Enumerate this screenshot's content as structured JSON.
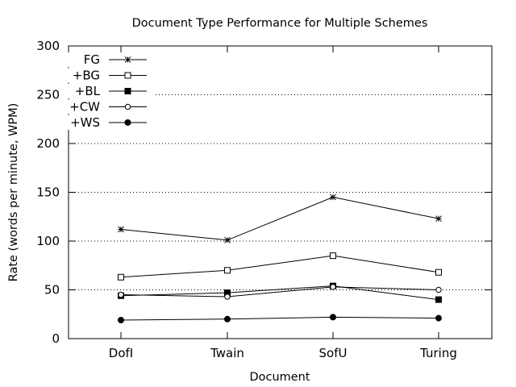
{
  "chart_data": {
    "type": "line",
    "title": "Document Type Performance for Multiple Schemes",
    "xlabel": "Document",
    "ylabel": "Rate (words per minute, WPM)",
    "categories": [
      "DofI",
      "Twain",
      "SofU",
      "Turing"
    ],
    "ylim": [
      0,
      300
    ],
    "yticks": [
      0,
      50,
      100,
      150,
      200,
      250,
      300
    ],
    "grid": "horizontal-dotted",
    "legend_position": "top-left",
    "series": [
      {
        "name": "FG",
        "marker": "asterisk",
        "values": [
          112,
          101,
          145,
          123
        ]
      },
      {
        "name": "+BG",
        "marker": "open-square",
        "values": [
          63,
          70,
          85,
          68
        ]
      },
      {
        "name": "+BL",
        "marker": "filled-square",
        "values": [
          44,
          47,
          54,
          40
        ]
      },
      {
        "name": "+CW",
        "marker": "open-circle",
        "values": [
          45,
          43,
          53,
          50
        ]
      },
      {
        "name": "+WS",
        "marker": "filled-circle",
        "values": [
          19,
          20,
          22,
          21
        ]
      }
    ]
  }
}
